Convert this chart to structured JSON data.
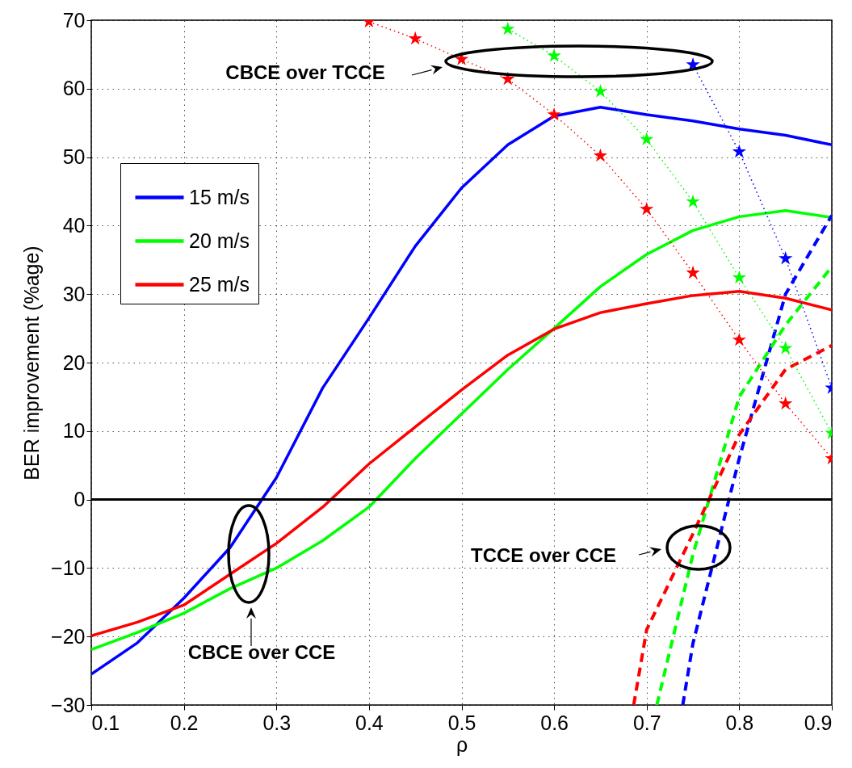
{
  "chart_data": {
    "type": "line",
    "xlabel": "ρ",
    "ylabel": "BER improvement (%age)",
    "xlim": [
      0.1,
      0.9
    ],
    "ylim": [
      -30,
      70
    ],
    "xticks": [
      0.1,
      0.2,
      0.3,
      0.4,
      0.5,
      0.6,
      0.7,
      0.8,
      0.9
    ],
    "yticks": [
      -30,
      -20,
      -10,
      0,
      10,
      20,
      30,
      40,
      50,
      60,
      70
    ],
    "grid": true,
    "legend": "top left",
    "x": [
      0.1,
      0.15,
      0.2,
      0.25,
      0.3,
      0.35,
      0.4,
      0.45,
      0.5,
      0.55,
      0.6,
      0.65,
      0.7,
      0.75,
      0.8,
      0.85,
      0.9
    ],
    "series": [
      {
        "name": "15 m/s",
        "color": "#0000ff",
        "line_style": "solid",
        "values": [
          -25.5,
          -20.9,
          -14.4,
          -7,
          3.2,
          16.3,
          26.5,
          37,
          45.5,
          51.8,
          56,
          57.3,
          56.2,
          55.3,
          54.1,
          53.2,
          51.8
        ]
      },
      {
        "name": "20 m/s",
        "color": "#00ff00",
        "line_style": "solid",
        "values": [
          -21.9,
          -19.4,
          -16.6,
          -13,
          -10,
          -6,
          -1.1,
          6,
          12.5,
          19,
          25,
          31.1,
          35.8,
          39.3,
          41.3,
          42.2,
          41.2
        ]
      },
      {
        "name": "25 m/s",
        "color": "#ff0000",
        "line_style": "solid",
        "values": [
          -19.9,
          -17.9,
          -15.4,
          -10.9,
          -6.4,
          -1.1,
          5.2,
          10.6,
          16,
          21.1,
          24.9,
          27.3,
          28.6,
          29.8,
          30.4,
          29.4,
          27.7
        ]
      },
      {
        "color": "#0000ff",
        "line_style": "dashed",
        "x": [
          0.739,
          0.75,
          0.8,
          0.85,
          0.9
        ],
        "values": [
          -30,
          -21,
          6,
          30,
          41.5
        ]
      },
      {
        "color": "#00ff00",
        "line_style": "dashed",
        "x": [
          0.711,
          0.75,
          0.8,
          0.85,
          0.9
        ],
        "values": [
          -30,
          -8,
          15,
          25.5,
          34
        ]
      },
      {
        "color": "#ff0000",
        "line_style": "dashed",
        "x": [
          0.686,
          0.7,
          0.75,
          0.8,
          0.85,
          0.9
        ],
        "values": [
          -30,
          -19,
          -5,
          9.5,
          19,
          22.5
        ]
      },
      {
        "color": "#0000ff",
        "line_style": "dotted",
        "marker": "star",
        "x": [
          0.75,
          0.8,
          0.85,
          0.9
        ],
        "values": [
          63.5,
          50.8,
          35.2,
          16.3
        ]
      },
      {
        "color": "#00ff00",
        "line_style": "dotted",
        "marker": "star",
        "x": [
          0.55,
          0.6,
          0.65,
          0.7,
          0.75,
          0.8,
          0.85,
          0.9
        ],
        "values": [
          68.7,
          64.8,
          59.6,
          52.6,
          43.5,
          32.4,
          22.1,
          9.7
        ]
      },
      {
        "color": "#ff0000",
        "line_style": "dotted",
        "marker": "star",
        "x": [
          0.4,
          0.45,
          0.5,
          0.55,
          0.6,
          0.65,
          0.7,
          0.75,
          0.8,
          0.85,
          0.9
        ],
        "values": [
          69.8,
          67.3,
          64.3,
          61.4,
          56.2,
          50.2,
          42.4,
          33.1,
          23.3,
          14,
          6
        ]
      }
    ],
    "ref_lines": [
      {
        "axis": "y",
        "value": 0,
        "color": "#000000"
      }
    ],
    "annotations": [
      "CBCE over TCCE",
      "CBCE over CCE",
      "TCCE over CCE"
    ]
  }
}
